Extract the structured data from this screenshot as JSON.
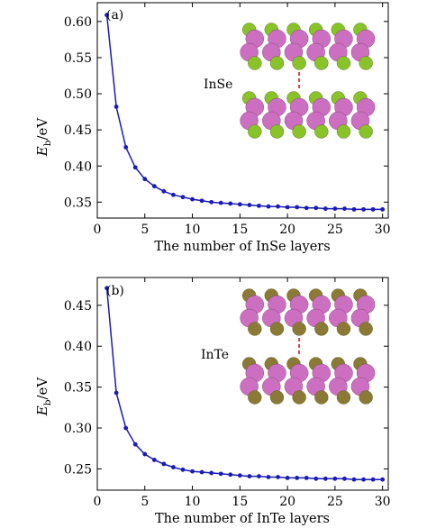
{
  "chart_data": [
    {
      "type": "line",
      "panel_label": "(a)",
      "material": "InSe",
      "xlabel": "The number of InSe layers",
      "ylabel_main": "E",
      "ylabel_sub": "b",
      "ylabel_unit": "/eV",
      "xlim": [
        0,
        30.6
      ],
      "ylim": [
        0.328,
        0.626
      ],
      "xticks": [
        0,
        5,
        10,
        15,
        20,
        25,
        30
      ],
      "yticks": [
        0.35,
        0.4,
        0.45,
        0.5,
        0.55,
        0.6
      ],
      "ytick_labels": [
        "0.35",
        "0.40",
        "0.45",
        "0.50",
        "0.55",
        "0.60"
      ],
      "series": [
        {
          "color": "#1a1ab8",
          "x": [
            1,
            2,
            3,
            4,
            5,
            6,
            7,
            8,
            9,
            10,
            11,
            12,
            13,
            14,
            15,
            16,
            17,
            18,
            19,
            20,
            21,
            22,
            23,
            24,
            25,
            26,
            27,
            28,
            29,
            30
          ],
          "values": [
            0.609,
            0.482,
            0.426,
            0.398,
            0.382,
            0.372,
            0.365,
            0.36,
            0.357,
            0.354,
            0.352,
            0.35,
            0.349,
            0.348,
            0.347,
            0.346,
            0.345,
            0.344,
            0.344,
            0.343,
            0.343,
            0.342,
            0.342,
            0.341,
            0.341,
            0.341,
            0.34,
            0.34,
            0.34,
            0.34
          ]
        }
      ],
      "inset": {
        "atom_a_color": "#cc6fc0",
        "atom_b_color": "#88c428",
        "separator_color": "#e0303a"
      },
      "grid": false
    },
    {
      "type": "line",
      "panel_label": "(b)",
      "material": "InTe",
      "xlabel": "The number of InTe layers",
      "ylabel_main": "E",
      "ylabel_sub": "b",
      "ylabel_unit": "/eV",
      "xlim": [
        0,
        30.6
      ],
      "ylim": [
        0.224,
        0.484
      ],
      "xticks": [
        0,
        5,
        10,
        15,
        20,
        25,
        30
      ],
      "yticks": [
        0.25,
        0.3,
        0.35,
        0.4,
        0.45
      ],
      "ytick_labels": [
        "0.25",
        "0.30",
        "0.35",
        "0.40",
        "0.45"
      ],
      "series": [
        {
          "color": "#1a1ab8",
          "x": [
            1,
            2,
            3,
            4,
            5,
            6,
            7,
            8,
            9,
            10,
            11,
            12,
            13,
            14,
            15,
            16,
            17,
            18,
            19,
            20,
            21,
            22,
            23,
            24,
            25,
            26,
            27,
            28,
            29,
            30
          ],
          "values": [
            0.471,
            0.343,
            0.3,
            0.28,
            0.268,
            0.261,
            0.256,
            0.252,
            0.249,
            0.247,
            0.246,
            0.245,
            0.244,
            0.243,
            0.242,
            0.241,
            0.241,
            0.24,
            0.24,
            0.239,
            0.239,
            0.239,
            0.238,
            0.238,
            0.238,
            0.238,
            0.237,
            0.237,
            0.237,
            0.237
          ]
        }
      ],
      "inset": {
        "atom_a_color": "#cc6fc0",
        "atom_b_color": "#8a7a36",
        "separator_color": "#e0303a"
      },
      "grid": false
    }
  ]
}
